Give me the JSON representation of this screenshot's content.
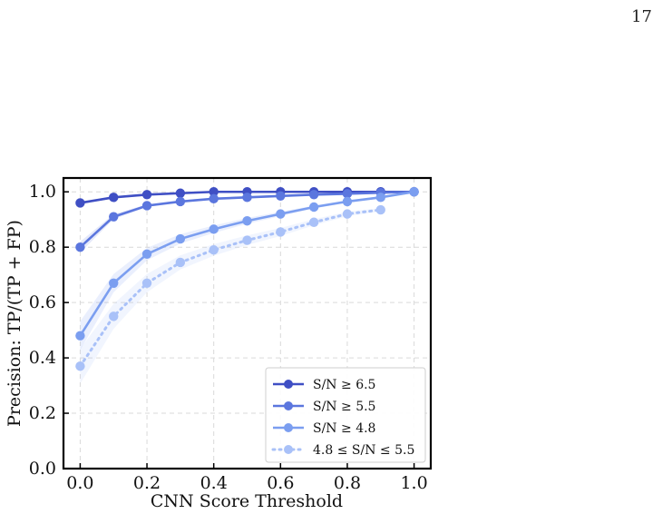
{
  "page": {
    "number": "17"
  },
  "chart_data": {
    "type": "line",
    "title": "",
    "xlabel": "CNN Score Threshold",
    "ylabel": "Precision: TP/(TP + FP)",
    "xlim": [
      -0.05,
      1.05
    ],
    "ylim": [
      0.0,
      1.05
    ],
    "xticks": [
      "0.0",
      "0.2",
      "0.4",
      "0.6",
      "0.8",
      "1.0"
    ],
    "yticks": [
      "0.0",
      "0.2",
      "0.4",
      "0.6",
      "0.8",
      "1.0"
    ],
    "grid": true,
    "legend_position": "bottom-right",
    "x": [
      0.0,
      0.1,
      0.2,
      0.3,
      0.4,
      0.5,
      0.6,
      0.7,
      0.8,
      0.9,
      1.0
    ],
    "series": [
      {
        "name": "S/N ≥ 6.5",
        "color": "#3f4fc4",
        "style": "solid",
        "values": [
          0.96,
          0.98,
          0.99,
          0.995,
          1.0,
          1.0,
          1.0,
          1.0,
          1.0,
          1.0,
          1.0
        ]
      },
      {
        "name": "S/N ≥ 5.5",
        "color": "#5b76de",
        "style": "solid",
        "values": [
          0.8,
          0.91,
          0.95,
          0.965,
          0.975,
          0.98,
          0.985,
          0.99,
          0.993,
          0.997,
          1.0
        ]
      },
      {
        "name": "S/N ≥ 4.8",
        "color": "#7b9ef0",
        "style": "solid",
        "values": [
          0.48,
          0.67,
          0.775,
          0.83,
          0.865,
          0.895,
          0.92,
          0.945,
          0.965,
          0.98,
          1.0
        ]
      },
      {
        "name": "4.8 ≤ S/N ≤ 5.5",
        "color": "#a9c1f8",
        "style": "dotted",
        "values": [
          0.37,
          0.55,
          0.67,
          0.745,
          0.79,
          0.825,
          0.855,
          0.89,
          0.92,
          0.935,
          null
        ]
      }
    ]
  }
}
